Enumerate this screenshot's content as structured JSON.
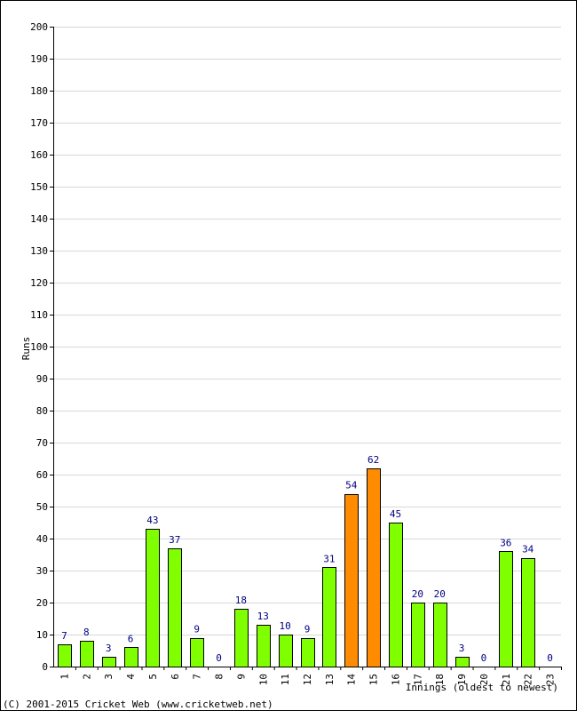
{
  "chart_data": {
    "type": "bar",
    "title": "",
    "xlabel": "Innings (oldest to newest)",
    "ylabel": "Runs",
    "ylim": [
      0,
      200
    ],
    "yticks": [
      0,
      10,
      20,
      30,
      40,
      50,
      60,
      70,
      80,
      90,
      100,
      110,
      120,
      130,
      140,
      150,
      160,
      170,
      180,
      190,
      200
    ],
    "grid": true,
    "categories": [
      "1",
      "2",
      "3",
      "4",
      "5",
      "6",
      "7",
      "8",
      "9",
      "10",
      "11",
      "12",
      "13",
      "14",
      "15",
      "16",
      "17",
      "18",
      "19",
      "20",
      "21",
      "22",
      "23"
    ],
    "values": [
      7,
      8,
      3,
      6,
      43,
      37,
      9,
      0,
      18,
      13,
      10,
      9,
      31,
      54,
      62,
      45,
      20,
      20,
      3,
      0,
      36,
      34,
      0
    ],
    "highlight_threshold": 50,
    "colors": {
      "bar": "#80ff00",
      "highlight_bar": "#ff8c00",
      "bar_outline": "#000000",
      "data_label": "#000080",
      "grid": "#d8d8d8"
    }
  },
  "footer": {
    "copyright": "(C) 2001-2015 Cricket Web (www.cricketweb.net)"
  }
}
